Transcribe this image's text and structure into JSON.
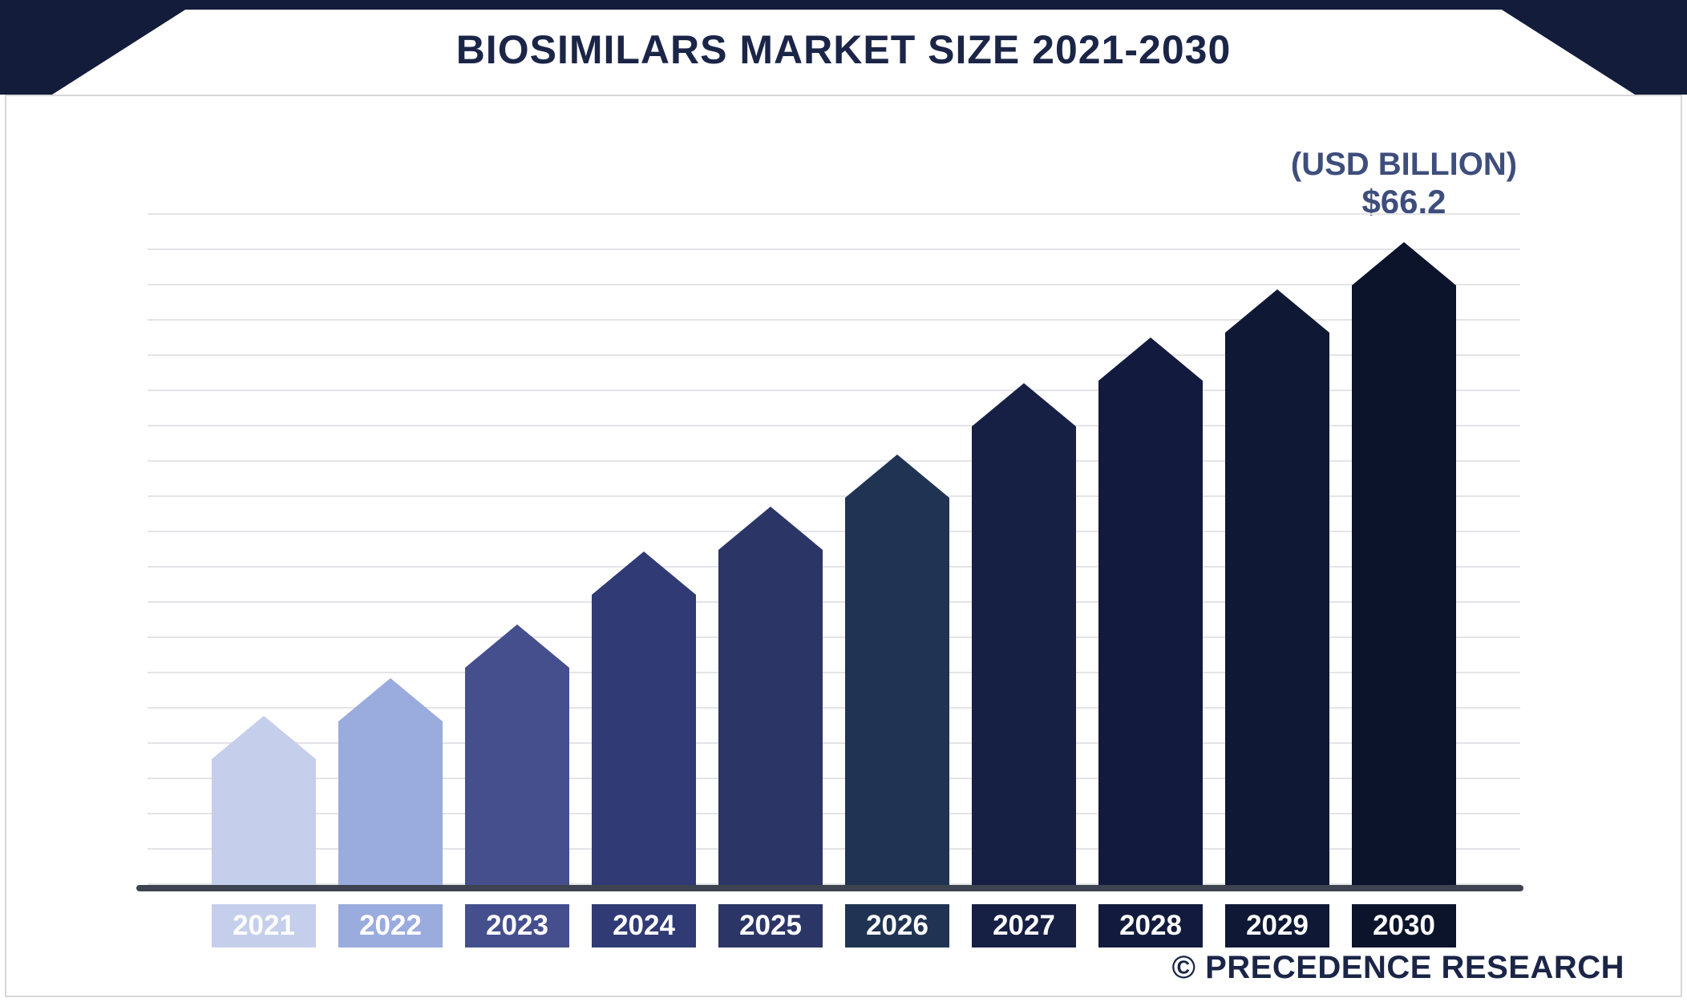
{
  "header": {
    "title": "BIOSIMILARS MARKET SIZE 2021-2030"
  },
  "chart_data": {
    "type": "bar",
    "title": "BIOSIMILARS MARKET SIZE 2021-2030",
    "unit_label": "(USD BILLION)",
    "max_value_label": "$66.2",
    "categories": [
      "2021",
      "2022",
      "2023",
      "2024",
      "2025",
      "2026",
      "2027",
      "2028",
      "2029",
      "2030"
    ],
    "values": [
      17.4,
      21.3,
      26.8,
      34.3,
      39.0,
      44.3,
      51.7,
      56.4,
      61.3,
      66.2
    ],
    "bar_colors": [
      "#c5cfec",
      "#9aabdd",
      "#454f8d",
      "#303a74",
      "#2b3566",
      "#203352",
      "#161f44",
      "#121b3d",
      "#0f1834",
      "#0c142c"
    ],
    "xlabel": "",
    "ylabel": "",
    "ylim": [
      0,
      69
    ],
    "grid": "horizontal",
    "legend": "none",
    "annotations": [
      "(USD BILLION)",
      "$66.2"
    ]
  },
  "footer": {
    "watermark": "© PRECEDENCE RESEARCH"
  },
  "colors": {
    "banner_navy": "#131c3b",
    "title_text": "#1b2547",
    "annotation_text": "#3e4e7c",
    "baseline": "#3e4350",
    "gridline": "#e4e4e8",
    "label_text": "#ffffff"
  }
}
